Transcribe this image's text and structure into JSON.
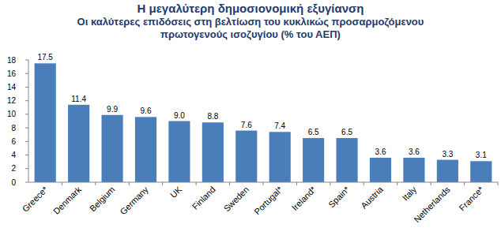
{
  "chart_data": {
    "type": "bar",
    "title": "Η μεγαλύτερη δημοσιονομική εξυγίανση",
    "subtitle": "Οι καλύτερες επιδόσεις στη βελτίωση του κυκλικώς προσαρμοζόμενου πρωτογενούς ισοζυγίου (% του ΑΕΠ)",
    "categories": [
      "Greece*",
      "Denmark",
      "Belgium",
      "Germany",
      "UK",
      "Finland",
      "Sweden",
      "Portugal*",
      "Ireland*",
      "Spain*",
      "Austria",
      "Italy",
      "Netherlands",
      "France*"
    ],
    "values": [
      17.5,
      11.4,
      9.9,
      9.6,
      9.0,
      8.8,
      7.6,
      7.4,
      6.5,
      6.5,
      3.6,
      3.6,
      3.3,
      3.1
    ],
    "value_labels": [
      "17.5",
      "11.4",
      "9.9",
      "9.6",
      "9.0",
      "8.8",
      "7.6",
      "7.4",
      "6.5",
      "6.5",
      "3.6",
      "3.6",
      "3.3",
      "3.1"
    ],
    "color": "#4a7ebb",
    "ylim": [
      0,
      18
    ],
    "yticks": [
      0,
      2,
      4,
      6,
      8,
      10,
      12,
      14,
      16,
      18
    ],
    "grid": false,
    "data_labels": true
  }
}
